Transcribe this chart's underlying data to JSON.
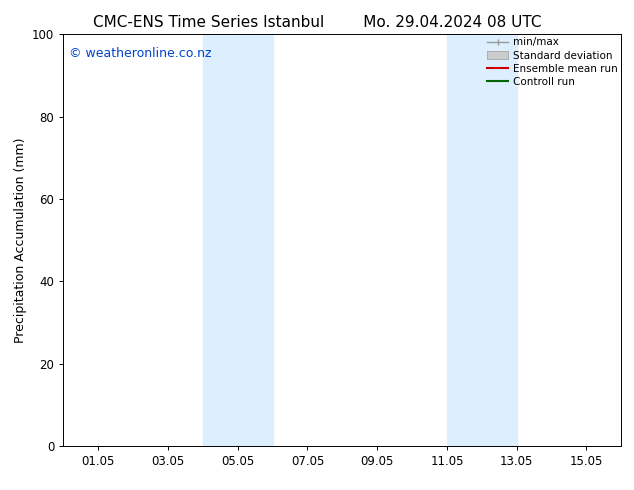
{
  "title_left": "CMC-ENS Time Series Istanbul",
  "title_right": "Mo. 29.04.2024 08 UTC",
  "ylabel": "Precipitation Accumulation (mm)",
  "xlim": [
    0,
    16
  ],
  "ylim": [
    0,
    100
  ],
  "yticks": [
    0,
    20,
    40,
    60,
    80,
    100
  ],
  "xtick_labels": [
    "01.05",
    "03.05",
    "05.05",
    "07.05",
    "09.05",
    "11.05",
    "13.05",
    "15.05"
  ],
  "xtick_positions": [
    1,
    3,
    5,
    7,
    9,
    11,
    13,
    15
  ],
  "shaded_bands": [
    {
      "x_start": 4.0,
      "x_end": 6.0
    },
    {
      "x_start": 11.0,
      "x_end": 13.0
    }
  ],
  "band_color": "#ddeeff",
  "copyright_text": "© weatheronline.co.nz",
  "copyright_color": "#0044cc",
  "legend_items": [
    {
      "label": "min/max",
      "color": "#999999",
      "style": "minmax"
    },
    {
      "label": "Standard deviation",
      "color": "#cccccc",
      "style": "band"
    },
    {
      "label": "Ensemble mean run",
      "color": "#cc0000",
      "style": "line"
    },
    {
      "label": "Controll run",
      "color": "#006600",
      "style": "line"
    }
  ],
  "background_color": "white",
  "title_fontsize": 11,
  "axis_fontsize": 9,
  "tick_fontsize": 8.5,
  "copyright_fontsize": 9
}
